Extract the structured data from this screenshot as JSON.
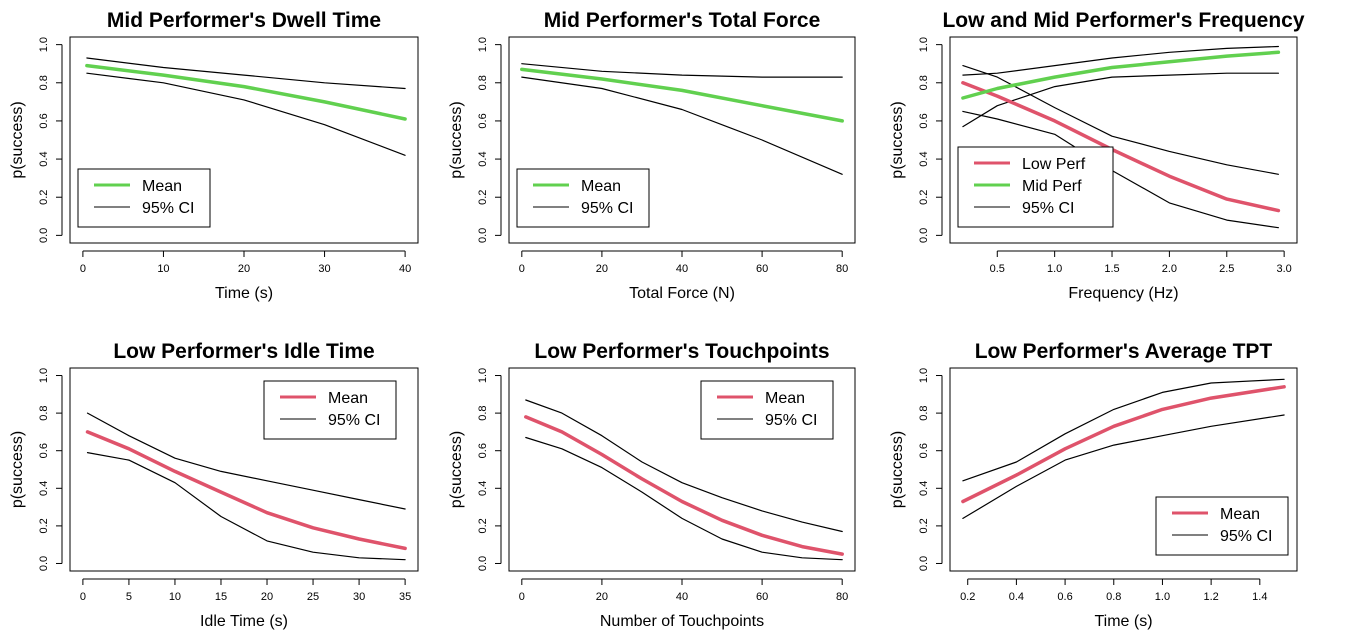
{
  "colors": {
    "low": "#df536b",
    "mid": "#61d04f",
    "ci": "#000000"
  },
  "chart_data": [
    {
      "type": "line",
      "title": "Mid Performer's Dwell Time",
      "xlabel": "Time (s)",
      "ylabel": "p(success)",
      "xlim": [
        0,
        40
      ],
      "ylim": [
        0,
        1
      ],
      "xticks": [
        0,
        10,
        20,
        30,
        40
      ],
      "yticks": [
        0.0,
        0.2,
        0.4,
        0.6,
        0.8,
        1.0
      ],
      "legend": {
        "position": "bottom-left",
        "entries": [
          {
            "label": "Mean",
            "color": "#61d04f",
            "width": 3
          },
          {
            "label": "95% CI",
            "color": "#000000",
            "width": 1
          }
        ]
      },
      "series": [
        {
          "name": "Mean",
          "color": "#61d04f",
          "width": 3.5,
          "x": [
            0.5,
            10,
            20,
            30,
            40
          ],
          "y": [
            0.89,
            0.84,
            0.78,
            0.7,
            0.61
          ]
        },
        {
          "name": "95% CI",
          "color": "#000000",
          "width": 1.2,
          "x": [
            0.5,
            10,
            20,
            30,
            40
          ],
          "y": [
            0.93,
            0.88,
            0.84,
            0.8,
            0.77
          ]
        },
        {
          "name": "95% CI",
          "color": "#000000",
          "width": 1.2,
          "x": [
            0.5,
            10,
            20,
            30,
            40
          ],
          "y": [
            0.85,
            0.8,
            0.71,
            0.58,
            0.42
          ]
        }
      ]
    },
    {
      "type": "line",
      "title": "Mid Performer's Total Force",
      "xlabel": "Total Force (N)",
      "ylabel": "p(success)",
      "xlim": [
        0,
        80
      ],
      "ylim": [
        0,
        1
      ],
      "xticks": [
        0,
        20,
        40,
        60,
        80
      ],
      "yticks": [
        0.0,
        0.2,
        0.4,
        0.6,
        0.8,
        1.0
      ],
      "legend": {
        "position": "bottom-left",
        "entries": [
          {
            "label": "Mean",
            "color": "#61d04f",
            "width": 3
          },
          {
            "label": "95% CI",
            "color": "#000000",
            "width": 1
          }
        ]
      },
      "series": [
        {
          "name": "Mean",
          "color": "#61d04f",
          "width": 3.5,
          "x": [
            0,
            20,
            40,
            60,
            80
          ],
          "y": [
            0.87,
            0.82,
            0.76,
            0.68,
            0.6
          ]
        },
        {
          "name": "95% CI",
          "color": "#000000",
          "width": 1.2,
          "x": [
            0,
            20,
            40,
            60,
            80
          ],
          "y": [
            0.9,
            0.86,
            0.84,
            0.83,
            0.83
          ]
        },
        {
          "name": "95% CI",
          "color": "#000000",
          "width": 1.2,
          "x": [
            0,
            20,
            40,
            60,
            80
          ],
          "y": [
            0.83,
            0.77,
            0.66,
            0.5,
            0.32
          ]
        }
      ]
    },
    {
      "type": "line",
      "title": "Low and Mid Performer's Frequency",
      "xlabel": "Frequency (Hz)",
      "ylabel": "p(success)",
      "xlim": [
        0.2,
        3.0
      ],
      "ylim": [
        0,
        1
      ],
      "xticks": [
        0.5,
        1.0,
        1.5,
        2.0,
        2.5,
        3.0
      ],
      "yticks": [
        0.0,
        0.2,
        0.4,
        0.6,
        0.8,
        1.0
      ],
      "legend": {
        "position": "bottom-left",
        "entries": [
          {
            "label": "Low Perf",
            "color": "#df536b",
            "width": 3
          },
          {
            "label": "Mid Perf",
            "color": "#61d04f",
            "width": 3
          },
          {
            "label": "95% CI",
            "color": "#000000",
            "width": 1
          }
        ]
      },
      "series": [
        {
          "name": "Low Perf",
          "color": "#df536b",
          "width": 3.5,
          "x": [
            0.2,
            0.5,
            1.0,
            1.5,
            2.0,
            2.5,
            2.95
          ],
          "y": [
            0.8,
            0.73,
            0.6,
            0.45,
            0.31,
            0.19,
            0.13
          ]
        },
        {
          "name": "95% CI",
          "color": "#000000",
          "width": 1.2,
          "x": [
            0.2,
            0.5,
            1.0,
            1.5,
            2.0,
            2.5,
            2.95
          ],
          "y": [
            0.89,
            0.83,
            0.67,
            0.52,
            0.44,
            0.37,
            0.32
          ]
        },
        {
          "name": "95% CI",
          "color": "#000000",
          "width": 1.2,
          "x": [
            0.2,
            0.5,
            1.0,
            1.5,
            2.0,
            2.5,
            2.95
          ],
          "y": [
            0.65,
            0.61,
            0.53,
            0.34,
            0.17,
            0.08,
            0.04
          ]
        },
        {
          "name": "Mid Perf",
          "color": "#61d04f",
          "width": 3.5,
          "x": [
            0.2,
            0.5,
            1.0,
            1.5,
            2.0,
            2.5,
            2.95
          ],
          "y": [
            0.72,
            0.77,
            0.83,
            0.88,
            0.91,
            0.94,
            0.96
          ]
        },
        {
          "name": "95% CI",
          "color": "#000000",
          "width": 1.2,
          "x": [
            0.2,
            0.5,
            1.0,
            1.5,
            2.0,
            2.5,
            2.95
          ],
          "y": [
            0.84,
            0.85,
            0.89,
            0.93,
            0.96,
            0.98,
            0.99
          ]
        },
        {
          "name": "95% CI",
          "color": "#000000",
          "width": 1.2,
          "x": [
            0.2,
            0.5,
            1.0,
            1.5,
            2.0,
            2.5,
            2.95
          ],
          "y": [
            0.57,
            0.68,
            0.78,
            0.83,
            0.84,
            0.85,
            0.85
          ]
        }
      ]
    },
    {
      "type": "line",
      "title": "Low Performer's Idle Time",
      "xlabel": "Idle Time (s)",
      "ylabel": "p(success)",
      "xlim": [
        0,
        35
      ],
      "ylim": [
        0,
        1
      ],
      "xticks": [
        0,
        5,
        10,
        15,
        20,
        25,
        30,
        35
      ],
      "yticks": [
        0.0,
        0.2,
        0.4,
        0.6,
        0.8,
        1.0
      ],
      "legend": {
        "position": "top-right",
        "entries": [
          {
            "label": "Mean",
            "color": "#df536b",
            "width": 3
          },
          {
            "label": "95% CI",
            "color": "#000000",
            "width": 1
          }
        ]
      },
      "series": [
        {
          "name": "Mean",
          "color": "#df536b",
          "width": 3.5,
          "x": [
            0.5,
            5,
            10,
            15,
            20,
            25,
            30,
            35
          ],
          "y": [
            0.7,
            0.61,
            0.49,
            0.38,
            0.27,
            0.19,
            0.13,
            0.08
          ]
        },
        {
          "name": "95% CI",
          "color": "#000000",
          "width": 1.2,
          "x": [
            0.5,
            5,
            10,
            15,
            20,
            25,
            30,
            35
          ],
          "y": [
            0.8,
            0.68,
            0.56,
            0.49,
            0.44,
            0.39,
            0.34,
            0.29
          ]
        },
        {
          "name": "95% CI",
          "color": "#000000",
          "width": 1.2,
          "x": [
            0.5,
            5,
            10,
            15,
            20,
            25,
            30,
            35
          ],
          "y": [
            0.59,
            0.55,
            0.43,
            0.25,
            0.12,
            0.06,
            0.03,
            0.02
          ]
        }
      ]
    },
    {
      "type": "line",
      "title": "Low Performer's Touchpoints",
      "xlabel": "Number of Touchpoints",
      "ylabel": "p(success)",
      "xlim": [
        0,
        80
      ],
      "ylim": [
        0,
        1
      ],
      "xticks": [
        0,
        20,
        40,
        60,
        80
      ],
      "yticks": [
        0.0,
        0.2,
        0.4,
        0.6,
        0.8,
        1.0
      ],
      "legend": {
        "position": "top-right",
        "entries": [
          {
            "label": "Mean",
            "color": "#df536b",
            "width": 3
          },
          {
            "label": "95% CI",
            "color": "#000000",
            "width": 1
          }
        ]
      },
      "series": [
        {
          "name": "Mean",
          "color": "#df536b",
          "width": 3.5,
          "x": [
            1,
            10,
            20,
            30,
            40,
            50,
            60,
            70,
            80
          ],
          "y": [
            0.78,
            0.7,
            0.58,
            0.45,
            0.33,
            0.23,
            0.15,
            0.09,
            0.05
          ]
        },
        {
          "name": "95% CI",
          "color": "#000000",
          "width": 1.2,
          "x": [
            1,
            10,
            20,
            30,
            40,
            50,
            60,
            70,
            80
          ],
          "y": [
            0.87,
            0.8,
            0.68,
            0.54,
            0.43,
            0.35,
            0.28,
            0.22,
            0.17
          ]
        },
        {
          "name": "95% CI",
          "color": "#000000",
          "width": 1.2,
          "x": [
            1,
            10,
            20,
            30,
            40,
            50,
            60,
            70,
            80
          ],
          "y": [
            0.67,
            0.61,
            0.51,
            0.38,
            0.24,
            0.13,
            0.06,
            0.03,
            0.02
          ]
        }
      ]
    },
    {
      "type": "line",
      "title": "Low Performer's Average TPT",
      "xlabel": "Time (s)",
      "ylabel": "p(success)",
      "xlim": [
        0.18,
        1.5
      ],
      "ylim": [
        0,
        1
      ],
      "xticks": [
        0.2,
        0.4,
        0.6,
        0.8,
        1.0,
        1.2,
        1.4
      ],
      "yticks": [
        0.0,
        0.2,
        0.4,
        0.6,
        0.8,
        1.0
      ],
      "legend": {
        "position": "bottom-right",
        "entries": [
          {
            "label": "Mean",
            "color": "#df536b",
            "width": 3
          },
          {
            "label": "95% CI",
            "color": "#000000",
            "width": 1
          }
        ]
      },
      "series": [
        {
          "name": "Mean",
          "color": "#df536b",
          "width": 3.5,
          "x": [
            0.18,
            0.4,
            0.6,
            0.8,
            1.0,
            1.2,
            1.5
          ],
          "y": [
            0.33,
            0.47,
            0.61,
            0.73,
            0.82,
            0.88,
            0.94
          ]
        },
        {
          "name": "95% CI",
          "color": "#000000",
          "width": 1.2,
          "x": [
            0.18,
            0.4,
            0.6,
            0.8,
            1.0,
            1.2,
            1.5
          ],
          "y": [
            0.44,
            0.54,
            0.69,
            0.82,
            0.91,
            0.96,
            0.98
          ]
        },
        {
          "name": "95% CI",
          "color": "#000000",
          "width": 1.2,
          "x": [
            0.18,
            0.4,
            0.6,
            0.8,
            1.0,
            1.2,
            1.5
          ],
          "y": [
            0.24,
            0.41,
            0.55,
            0.63,
            0.68,
            0.73,
            0.79
          ]
        }
      ]
    }
  ]
}
